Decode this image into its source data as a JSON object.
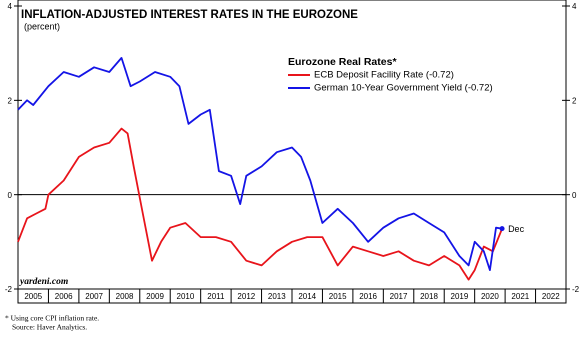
{
  "chart_data": {
    "type": "line",
    "title": "INFLATION-ADJUSTED INTEREST RATES IN THE EUROZONE",
    "subtitle": "(percent)",
    "legend_title": "Eurozone Real Rates*",
    "annotation": "Dec",
    "watermark": "yardeni.com",
    "footnote": "* Using core CPI inflation rate.",
    "source": "Source: Haver Analytics.",
    "ylim": [
      -2,
      4
    ],
    "yticks": [
      -2,
      0,
      2,
      4
    ],
    "xlim": [
      2005,
      2023
    ],
    "xticks": [
      2005,
      2006,
      2007,
      2008,
      2009,
      2010,
      2011,
      2012,
      2013,
      2014,
      2015,
      2016,
      2017,
      2018,
      2019,
      2020,
      2021,
      2022
    ],
    "series": [
      {
        "name": "ECB Deposit Facility Rate (-0.72)",
        "color": "#e8141b",
        "x": [
          2005,
          2005.3,
          2005.6,
          2005.9,
          2006.0,
          2006.5,
          2007,
          2007.5,
          2008,
          2008.4,
          2008.6,
          2008.8,
          2009.1,
          2009.4,
          2009.7,
          2010,
          2010.5,
          2011,
          2011.5,
          2012,
          2012.5,
          2013,
          2013.5,
          2014,
          2014.5,
          2015,
          2015.5,
          2016,
          2016.5,
          2017,
          2017.5,
          2018,
          2018.5,
          2019,
          2019.5,
          2019.8,
          2020,
          2020.3,
          2020.6,
          2020.9
        ],
        "values": [
          -1.0,
          -0.5,
          -0.4,
          -0.3,
          0.0,
          0.3,
          0.8,
          1.0,
          1.1,
          1.4,
          1.3,
          0.6,
          -0.4,
          -1.4,
          -1.0,
          -0.7,
          -0.6,
          -0.9,
          -0.9,
          -1.0,
          -1.4,
          -1.5,
          -1.2,
          -1.0,
          -0.9,
          -0.9,
          -1.5,
          -1.1,
          -1.2,
          -1.3,
          -1.2,
          -1.4,
          -1.5,
          -1.3,
          -1.5,
          -1.8,
          -1.6,
          -1.1,
          -1.2,
          -0.72
        ]
      },
      {
        "name": "German 10-Year Government Yield (-0.72)",
        "color": "#1414e6",
        "x": [
          2005,
          2005.3,
          2005.5,
          2006,
          2006.5,
          2007,
          2007.5,
          2008,
          2008.4,
          2008.7,
          2009,
          2009.5,
          2010,
          2010.3,
          2010.6,
          2011,
          2011.3,
          2011.6,
          2012,
          2012.3,
          2012.5,
          2013,
          2013.5,
          2014,
          2014.3,
          2014.6,
          2015,
          2015.5,
          2016,
          2016.5,
          2017,
          2017.5,
          2018,
          2018.5,
          2019,
          2019.5,
          2019.8,
          2020,
          2020.3,
          2020.5,
          2020.7,
          2020.9
        ],
        "values": [
          1.8,
          2.0,
          1.9,
          2.3,
          2.6,
          2.5,
          2.7,
          2.6,
          2.9,
          2.3,
          2.4,
          2.6,
          2.5,
          2.3,
          1.5,
          1.7,
          1.8,
          0.5,
          0.4,
          -0.2,
          0.4,
          0.6,
          0.9,
          1.0,
          0.8,
          0.3,
          -0.6,
          -0.3,
          -0.6,
          -1.0,
          -0.7,
          -0.5,
          -0.4,
          -0.6,
          -0.8,
          -1.3,
          -1.5,
          -1.0,
          -1.2,
          -1.6,
          -0.7,
          -0.72
        ]
      }
    ]
  }
}
